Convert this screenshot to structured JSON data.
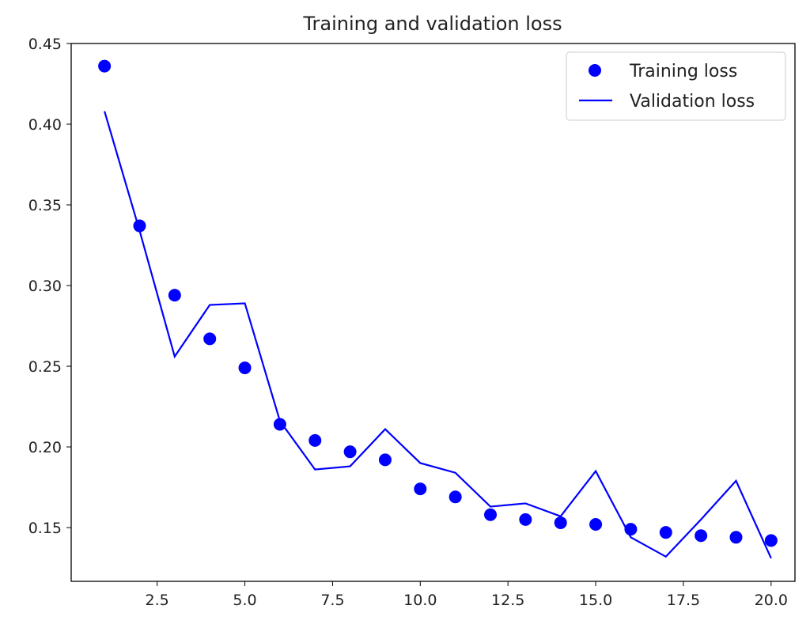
{
  "chart_data": {
    "type": "line",
    "title": "Training and validation loss",
    "xlabel": "",
    "ylabel": "",
    "xlim": [
      0.05,
      20.68
    ],
    "ylim": [
      0.1167,
      0.45
    ],
    "xticks": [
      2.5,
      5.0,
      7.5,
      10.0,
      12.5,
      15.0,
      17.5,
      20.0
    ],
    "xtick_labels": [
      "2.5",
      "5.0",
      "7.5",
      "10.0",
      "12.5",
      "15.0",
      "17.5",
      "20.0"
    ],
    "yticks": [
      0.15,
      0.2,
      0.25,
      0.3,
      0.35,
      0.4,
      0.45
    ],
    "ytick_labels": [
      "0.15",
      "0.20",
      "0.25",
      "0.30",
      "0.35",
      "0.40",
      "0.45"
    ],
    "grid": false,
    "legend_position": "top-right",
    "x": [
      1,
      2,
      3,
      4,
      5,
      6,
      7,
      8,
      9,
      10,
      11,
      12,
      13,
      14,
      15,
      16,
      17,
      18,
      19,
      20
    ],
    "series": [
      {
        "name": "Training loss",
        "style": "dots",
        "color": "#0000ff",
        "values": [
          0.436,
          0.337,
          0.294,
          0.267,
          0.249,
          0.214,
          0.204,
          0.197,
          0.192,
          0.174,
          0.169,
          0.158,
          0.155,
          0.153,
          0.152,
          0.149,
          0.147,
          0.145,
          0.144,
          0.142
        ]
      },
      {
        "name": "Validation loss",
        "style": "line",
        "color": "#0000ff",
        "values": [
          0.408,
          0.334,
          0.256,
          0.288,
          0.289,
          0.216,
          0.186,
          0.188,
          0.211,
          0.19,
          0.184,
          0.163,
          0.165,
          0.157,
          0.185,
          0.144,
          0.132,
          0.155,
          0.179,
          0.131
        ]
      }
    ]
  }
}
